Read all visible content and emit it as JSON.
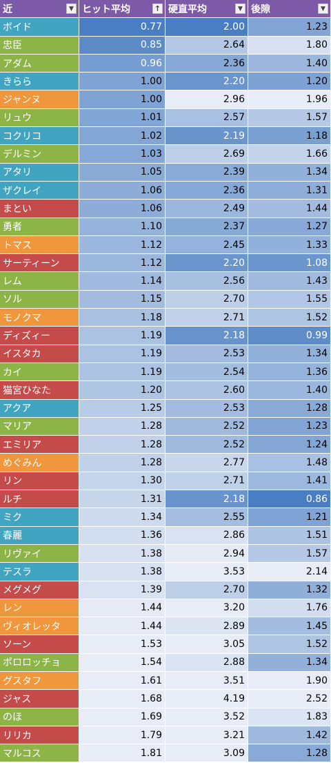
{
  "headers": [
    "近",
    "ヒット平均",
    "硬直平均",
    "後隙"
  ],
  "header_icons": [
    "filter-dropdown-icon",
    "sort-ascending-icon",
    "filter-dropdown-icon",
    "filter-dropdown-icon"
  ],
  "category_colors": {
    "blue": "#41a5c1",
    "green": "#8db446",
    "orange": "#f0963c",
    "red": "#c54a4a"
  },
  "rows": [
    {
      "name": "ボイド",
      "cat": "blue",
      "hit": "0.77",
      "stun": "2.00",
      "rec": "1.23"
    },
    {
      "name": "忠臣",
      "cat": "green",
      "hit": "0.85",
      "stun": "2.64",
      "rec": "1.80"
    },
    {
      "name": "アダム",
      "cat": "green",
      "hit": "0.96",
      "stun": "2.36",
      "rec": "1.40"
    },
    {
      "name": "きらら",
      "cat": "blue",
      "hit": "1.00",
      "stun": "2.20",
      "rec": "1.20"
    },
    {
      "name": "ジャンヌ",
      "cat": "orange",
      "hit": "1.00",
      "stun": "2.96",
      "rec": "1.96"
    },
    {
      "name": "リュウ",
      "cat": "green",
      "hit": "1.01",
      "stun": "2.57",
      "rec": "1.57"
    },
    {
      "name": "コクリコ",
      "cat": "blue",
      "hit": "1.02",
      "stun": "2.19",
      "rec": "1.18"
    },
    {
      "name": "デルミン",
      "cat": "green",
      "hit": "1.03",
      "stun": "2.69",
      "rec": "1.66"
    },
    {
      "name": "アタリ",
      "cat": "blue",
      "hit": "1.05",
      "stun": "2.39",
      "rec": "1.34"
    },
    {
      "name": "ザクレイ",
      "cat": "blue",
      "hit": "1.06",
      "stun": "2.36",
      "rec": "1.31"
    },
    {
      "name": "まとい",
      "cat": "red",
      "hit": "1.06",
      "stun": "2.49",
      "rec": "1.44"
    },
    {
      "name": "勇者",
      "cat": "green",
      "hit": "1.10",
      "stun": "2.37",
      "rec": "1.27"
    },
    {
      "name": "トマス",
      "cat": "orange",
      "hit": "1.12",
      "stun": "2.45",
      "rec": "1.33"
    },
    {
      "name": "サーティーン",
      "cat": "red",
      "hit": "1.12",
      "stun": "2.20",
      "rec": "1.08"
    },
    {
      "name": "レム",
      "cat": "green",
      "hit": "1.14",
      "stun": "2.56",
      "rec": "1.43"
    },
    {
      "name": "ソル",
      "cat": "green",
      "hit": "1.15",
      "stun": "2.70",
      "rec": "1.55"
    },
    {
      "name": "モノクマ",
      "cat": "orange",
      "hit": "1.18",
      "stun": "2.71",
      "rec": "1.52"
    },
    {
      "name": "ディズィー",
      "cat": "red",
      "hit": "1.19",
      "stun": "2.18",
      "rec": "0.99"
    },
    {
      "name": "イスタカ",
      "cat": "red",
      "hit": "1.19",
      "stun": "2.53",
      "rec": "1.34"
    },
    {
      "name": "カイ",
      "cat": "green",
      "hit": "1.19",
      "stun": "2.54",
      "rec": "1.36"
    },
    {
      "name": "猫宮ひなた",
      "cat": "red",
      "hit": "1.20",
      "stun": "2.60",
      "rec": "1.40"
    },
    {
      "name": "アクア",
      "cat": "blue",
      "hit": "1.25",
      "stun": "2.53",
      "rec": "1.28"
    },
    {
      "name": "マリア",
      "cat": "green",
      "hit": "1.28",
      "stun": "2.52",
      "rec": "1.23"
    },
    {
      "name": "エミリア",
      "cat": "red",
      "hit": "1.28",
      "stun": "2.52",
      "rec": "1.24"
    },
    {
      "name": "めぐみん",
      "cat": "orange",
      "hit": "1.28",
      "stun": "2.77",
      "rec": "1.48"
    },
    {
      "name": "リン",
      "cat": "red",
      "hit": "1.30",
      "stun": "2.71",
      "rec": "1.41"
    },
    {
      "name": "ルチ",
      "cat": "red",
      "hit": "1.31",
      "stun": "2.18",
      "rec": "0.86"
    },
    {
      "name": "ミク",
      "cat": "blue",
      "hit": "1.34",
      "stun": "2.55",
      "rec": "1.21"
    },
    {
      "name": "春麗",
      "cat": "blue",
      "hit": "1.36",
      "stun": "2.86",
      "rec": "1.51"
    },
    {
      "name": "リヴァイ",
      "cat": "green",
      "hit": "1.38",
      "stun": "2.94",
      "rec": "1.57"
    },
    {
      "name": "テスラ",
      "cat": "blue",
      "hit": "1.38",
      "stun": "3.53",
      "rec": "2.14"
    },
    {
      "name": "メグメグ",
      "cat": "red",
      "hit": "1.39",
      "stun": "2.70",
      "rec": "1.32"
    },
    {
      "name": "レン",
      "cat": "orange",
      "hit": "1.44",
      "stun": "3.20",
      "rec": "1.76"
    },
    {
      "name": "ヴィオレッタ",
      "cat": "orange",
      "hit": "1.44",
      "stun": "2.89",
      "rec": "1.45"
    },
    {
      "name": "ソーン",
      "cat": "red",
      "hit": "1.53",
      "stun": "3.05",
      "rec": "1.52"
    },
    {
      "name": "ポロロッチョ",
      "cat": "green",
      "hit": "1.54",
      "stun": "2.88",
      "rec": "1.34"
    },
    {
      "name": "グスタフ",
      "cat": "orange",
      "hit": "1.61",
      "stun": "3.51",
      "rec": "1.90"
    },
    {
      "name": "ジャス",
      "cat": "red",
      "hit": "1.68",
      "stun": "4.19",
      "rec": "2.52"
    },
    {
      "name": "のほ",
      "cat": "green",
      "hit": "1.69",
      "stun": "3.52",
      "rec": "1.83"
    },
    {
      "name": "リリカ",
      "cat": "red",
      "hit": "1.79",
      "stun": "3.21",
      "rec": "1.42"
    },
    {
      "name": "マルコス",
      "cat": "green",
      "hit": "1.81",
      "stun": "3.09",
      "rec": "1.28"
    }
  ]
}
